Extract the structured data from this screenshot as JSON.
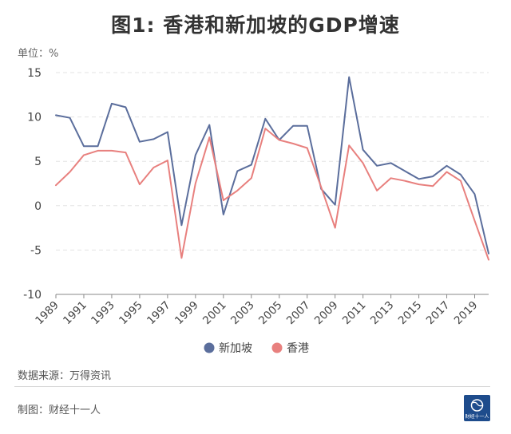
{
  "header": {
    "title": "图1: 香港和新加坡的GDP增速",
    "unit": "单位：%"
  },
  "footer": {
    "source": "数据来源：万得资讯",
    "maker": "制图：财经十一人",
    "logo_text": "财经十一人"
  },
  "colors": {
    "singapore": "#5b6e9c",
    "hongkong": "#e8807e",
    "grid": "#e3e3e3",
    "logo_bg": "#1e4c8c"
  },
  "chart_data": {
    "type": "line",
    "title": "图1: 香港和新加坡的GDP增速",
    "ylabel": "单位：%",
    "xlabel": "",
    "ylim": [
      -10,
      15
    ],
    "yticks": [
      -10,
      -5,
      0,
      5,
      10,
      15
    ],
    "grid": true,
    "legend": "bottom-center",
    "x": [
      1989,
      1990,
      1991,
      1992,
      1993,
      1994,
      1995,
      1996,
      1997,
      1998,
      1999,
      2000,
      2001,
      2002,
      2003,
      2004,
      2005,
      2006,
      2007,
      2008,
      2009,
      2010,
      2011,
      2012,
      2013,
      2014,
      2015,
      2016,
      2017,
      2018,
      2019,
      2020
    ],
    "x_tick_labels": [
      "1989",
      "1991",
      "1993",
      "1995",
      "1997",
      "1999",
      "2001",
      "2003",
      "2005",
      "2007",
      "2009",
      "2011",
      "2013",
      "2015",
      "2017",
      "2019"
    ],
    "series": [
      {
        "name": "新加坡",
        "color": "#5b6e9c",
        "values": [
          10.2,
          9.9,
          6.7,
          6.7,
          11.5,
          11.1,
          7.2,
          7.5,
          8.3,
          -2.2,
          5.7,
          9.1,
          -1.0,
          3.9,
          4.6,
          9.8,
          7.4,
          9.0,
          9.0,
          1.9,
          0.1,
          14.5,
          6.3,
          4.5,
          4.8,
          3.9,
          3.0,
          3.3,
          4.5,
          3.5,
          1.3,
          -5.4
        ]
      },
      {
        "name": "香港",
        "color": "#e8807e",
        "values": [
          2.3,
          3.8,
          5.7,
          6.2,
          6.2,
          6.0,
          2.4,
          4.3,
          5.1,
          -5.9,
          2.5,
          7.7,
          0.6,
          1.7,
          3.1,
          8.7,
          7.4,
          7.0,
          6.5,
          2.1,
          -2.5,
          6.8,
          4.8,
          1.7,
          3.1,
          2.8,
          2.4,
          2.2,
          3.8,
          2.8,
          -1.7,
          -6.1
        ]
      }
    ]
  }
}
